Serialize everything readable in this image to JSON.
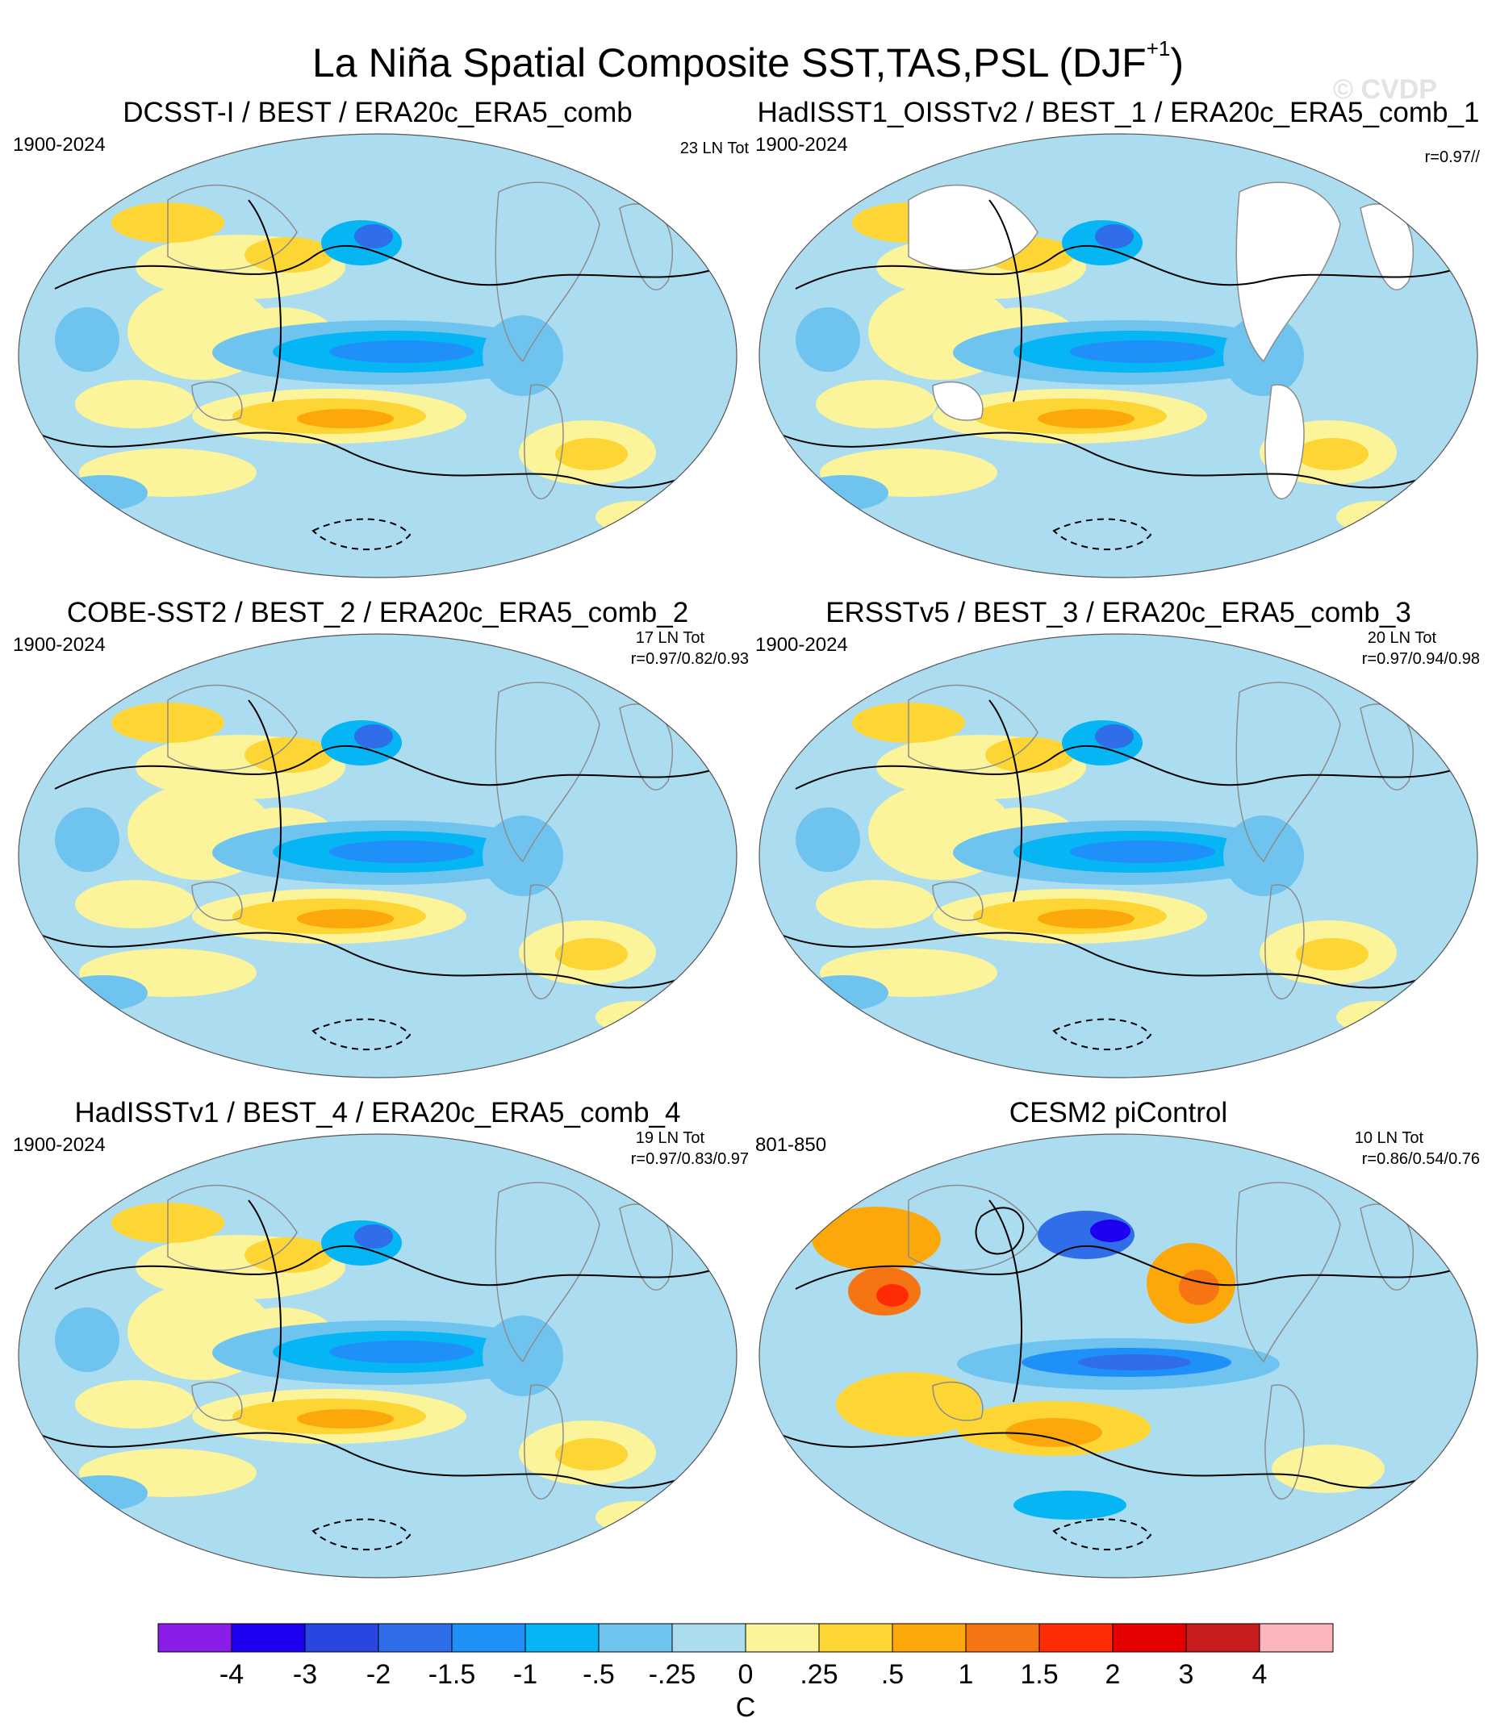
{
  "title": {
    "main": "La Niña Spatial Composite SST,TAS,PSL (DJF",
    "sup": "+1",
    "close": ")"
  },
  "watermark": "© CVDP",
  "panels": [
    {
      "title": "DCSST-I / BEST / ERA20c_ERA5_comb",
      "years": "1900-2024",
      "count": "23 LN Tot",
      "corr": "",
      "land_masked": false
    },
    {
      "title": "HadISST1_OISSTv2 / BEST_1 / ERA20c_ERA5_comb_1",
      "years": "1900-2024",
      "count": "",
      "corr": "r=0.97//",
      "land_masked": true
    },
    {
      "title": "COBE-SST2 / BEST_2 / ERA20c_ERA5_comb_2",
      "years": "1900-2024",
      "count": "17 LN Tot",
      "corr": "r=0.97/0.82/0.93",
      "land_masked": false
    },
    {
      "title": "ERSSTv5 / BEST_3 / ERA20c_ERA5_comb_3",
      "years": "1900-2024",
      "count": "20 LN Tot",
      "corr": "r=0.97/0.94/0.98",
      "land_masked": false
    },
    {
      "title": "HadISSTv1 / BEST_4 / ERA20c_ERA5_comb_4",
      "years": "1900-2024",
      "count": "19 LN Tot",
      "corr": "r=0.97/0.83/0.97",
      "land_masked": false
    },
    {
      "title": "CESM2 piControl",
      "years": "801-850",
      "count": "10 LN Tot",
      "corr": "r=0.86/0.54/0.76",
      "land_masked": false
    }
  ],
  "chart_data": {
    "type": "heatmap",
    "title": "La Niña Spatial Composite SST,TAS,PSL (DJF+1)",
    "projection": "Robinson (global, Pacific-centered)",
    "overlay": "sea level pressure contours (solid positive, dashed negative)",
    "colorbar": {
      "unit": "C",
      "levels": [
        "-4",
        "-3",
        "-2",
        "-1.5",
        "-1",
        "-.5",
        "-.25",
        "0",
        ".25",
        ".5",
        "1",
        "1.5",
        "2",
        "3",
        "4"
      ],
      "colors": [
        "#8a1ee8",
        "#1c00ee",
        "#2a46e0",
        "#2f6ee8",
        "#1f90f7",
        "#06b5f4",
        "#6ec4ef",
        "#acdcf0",
        "#fbf49b",
        "#fdd535",
        "#fda80a",
        "#f77414",
        "#ff2b04",
        "#e60000",
        "#c81d1e",
        "#fcb5bb"
      ]
    }
  }
}
